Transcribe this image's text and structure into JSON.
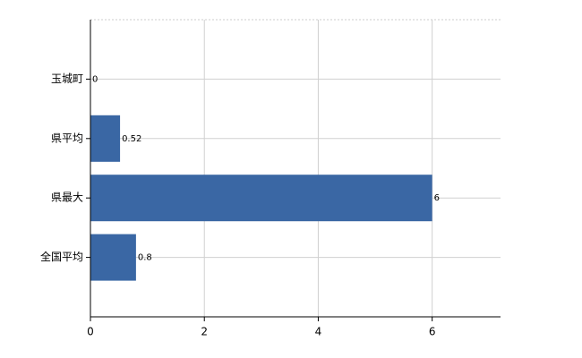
{
  "chart_data": {
    "type": "hbar",
    "categories": [
      "玉城町",
      "県平均",
      "県最大",
      "全国平均"
    ],
    "values": [
      0,
      0.52,
      6,
      0.8
    ],
    "color": "#3a67a4",
    "xlim": [
      0,
      7.2
    ],
    "xticks": [
      0,
      2,
      4,
      6
    ],
    "grid": true
  }
}
